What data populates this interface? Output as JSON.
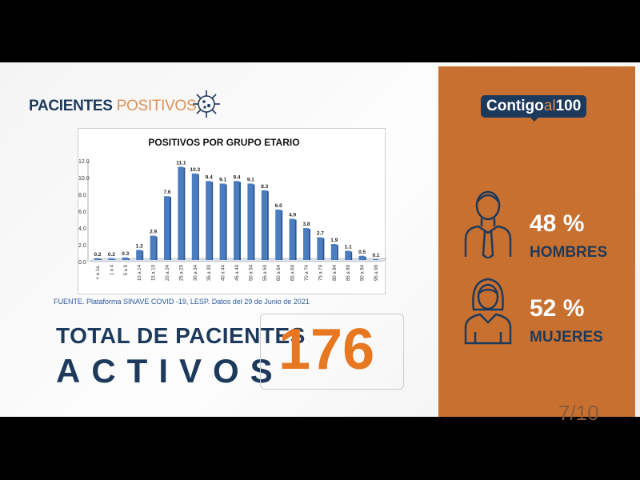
{
  "header": {
    "title_bold": "PACIENTES",
    "title_light": "POSITIVOS"
  },
  "source": "FUENTE. Plataforma SINAVE COVID -19, LESP. Datos del 29 de Junio de 2021",
  "total": {
    "line1": "TOTAL DE PACIENTES",
    "line2": "ACTIVOS",
    "value": "176"
  },
  "brand": {
    "part1": "Contigo",
    "part2": "al",
    "part3": "100"
  },
  "gender": [
    {
      "percent": "48 %",
      "label": "HOMBRES",
      "icon": "man-icon"
    },
    {
      "percent": "52 %",
      "label": "MUJERES",
      "icon": "woman-icon"
    }
  ],
  "page_number": "7/10",
  "colors": {
    "navy": "#1d3a5c",
    "orange": "#c8702f",
    "accent": "#e87722",
    "bar": "#4a7cc0"
  },
  "chart_data": {
    "type": "bar",
    "title": "POSITIVOS POR GRUPO ETARIO",
    "xlabel": "",
    "ylabel": "",
    "ylim": [
      0,
      12
    ],
    "yticks": [
      "0.0",
      "2.0",
      "4.0",
      "6.0",
      "8.0",
      "10.0",
      "12.0"
    ],
    "categories": [
      "< a 1a.",
      "1 a 4",
      "5 a 9",
      "10 a 14",
      "15 a 19",
      "20 a 24",
      "25 a 29",
      "30 a 34",
      "35 a 39",
      "40 a 44",
      "45 a 49",
      "50 a 54",
      "55 a 59",
      "60 a 64",
      "65 a 69",
      "70 a 74",
      "75 a 79",
      "80 a 84",
      "85 a 89",
      "90 a 94",
      "95 a 99"
    ],
    "values": [
      0.2,
      0.2,
      0.3,
      1.2,
      2.9,
      7.6,
      11.1,
      10.3,
      9.4,
      9.1,
      9.4,
      9.1,
      8.3,
      6.0,
      4.9,
      3.8,
      2.7,
      1.9,
      1.1,
      0.5,
      0.1
    ],
    "labels": [
      "0.2",
      "0.2",
      "0.3",
      "1.2",
      "2.9",
      "7.6",
      "11.1",
      "10.3",
      "9.4",
      "9.1",
      "9.4",
      "9.1",
      "8.3",
      "6.0",
      "4.9",
      "3.8",
      "2.7",
      "1.9",
      "1.1",
      "0.5",
      "0.1"
    ]
  }
}
